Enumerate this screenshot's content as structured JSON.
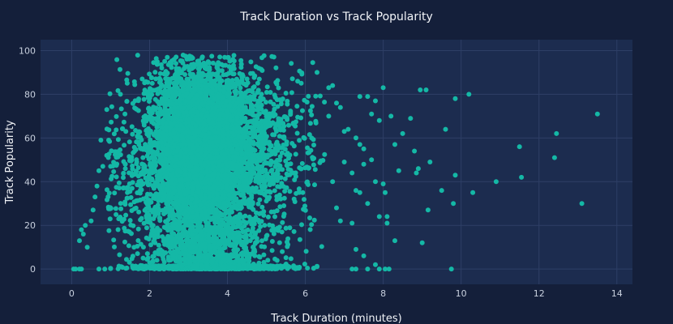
{
  "chart_data": {
    "type": "scatter",
    "title": "Track Duration vs Track Popularity",
    "xlabel": "Track Duration (minutes)",
    "ylabel": "Track Popularity",
    "xlim": [
      -0.8,
      14.4
    ],
    "ylim": [
      -7,
      105
    ],
    "xticks": [
      0,
      2,
      4,
      6,
      8,
      10,
      12,
      14
    ],
    "yticks": [
      0,
      20,
      40,
      60,
      80,
      100
    ],
    "grid": true,
    "legend": "none",
    "colors": {
      "background": "#141f3a",
      "plot_area": "#1c2c4f",
      "grid": "#2e3f66",
      "marker": "#14b8a6"
    },
    "marker_size": 3,
    "clusters": [
      {
        "cx": 3.3,
        "cy": 58,
        "sx": 0.55,
        "sy": 15,
        "n": 3600
      },
      {
        "cx": 3.4,
        "cy": 48,
        "sx": 0.95,
        "sy": 22,
        "n": 1700
      },
      {
        "cx": 2.9,
        "cy": 40,
        "sx": 1.1,
        "sy": 20,
        "n": 500
      },
      {
        "cx": 4.8,
        "cy": 55,
        "sx": 0.8,
        "sy": 20,
        "n": 500
      }
    ],
    "zero_band": {
      "x_min": 1.0,
      "x_max": 6.3,
      "center": 3.6,
      "spread": 0.9,
      "n": 900
    },
    "low_column": {
      "x_center": 3.6,
      "spread": 0.7,
      "y_max": 20,
      "n": 500
    },
    "outliers": [
      [
        0.05,
        0
      ],
      [
        0.1,
        0
      ],
      [
        0.2,
        0
      ],
      [
        0.25,
        0
      ],
      [
        0.7,
        0
      ],
      [
        0.85,
        0
      ],
      [
        0.2,
        13
      ],
      [
        0.25,
        18
      ],
      [
        0.3,
        16
      ],
      [
        0.35,
        20
      ],
      [
        0.4,
        10
      ],
      [
        0.5,
        22
      ],
      [
        0.55,
        27
      ],
      [
        0.6,
        33
      ],
      [
        0.65,
        38
      ],
      [
        0.7,
        45
      ],
      [
        0.75,
        59
      ],
      [
        0.8,
        47
      ],
      [
        0.9,
        52
      ],
      [
        0.95,
        59
      ],
      [
        1.0,
        47
      ],
      [
        6.3,
        90
      ],
      [
        6.6,
        83
      ],
      [
        6.7,
        84
      ],
      [
        6.8,
        76
      ],
      [
        6.6,
        70
      ],
      [
        6.9,
        74
      ],
      [
        7.0,
        63
      ],
      [
        7.1,
        64
      ],
      [
        6.7,
        40
      ],
      [
        6.8,
        28
      ],
      [
        6.9,
        22
      ],
      [
        7.0,
        49
      ],
      [
        7.2,
        44
      ],
      [
        7.3,
        60
      ],
      [
        7.4,
        57
      ],
      [
        7.5,
        55
      ],
      [
        7.3,
        36
      ],
      [
        7.2,
        21
      ],
      [
        7.3,
        9
      ],
      [
        7.5,
        6
      ],
      [
        7.4,
        79
      ],
      [
        7.6,
        79
      ],
      [
        7.8,
        77
      ],
      [
        7.7,
        71
      ],
      [
        7.9,
        68
      ],
      [
        7.5,
        48
      ],
      [
        7.6,
        30
      ],
      [
        7.4,
        35
      ],
      [
        7.7,
        50
      ],
      [
        7.8,
        40
      ],
      [
        7.9,
        24
      ],
      [
        7.2,
        0
      ],
      [
        7.3,
        0
      ],
      [
        7.6,
        0
      ],
      [
        7.8,
        2
      ],
      [
        7.9,
        0
      ],
      [
        8.0,
        83
      ],
      [
        8.0,
        39
      ],
      [
        8.05,
        35
      ],
      [
        8.1,
        24
      ],
      [
        8.1,
        21
      ],
      [
        8.05,
        0
      ],
      [
        8.15,
        0
      ],
      [
        8.2,
        70
      ],
      [
        8.3,
        13
      ],
      [
        8.3,
        57
      ],
      [
        8.4,
        45
      ],
      [
        8.5,
        62
      ],
      [
        8.7,
        69
      ],
      [
        8.8,
        54
      ],
      [
        8.9,
        46
      ],
      [
        8.85,
        44
      ],
      [
        8.95,
        82
      ],
      [
        9.1,
        82
      ],
      [
        9.15,
        27
      ],
      [
        9.0,
        12
      ],
      [
        9.2,
        49
      ],
      [
        9.5,
        36
      ],
      [
        9.6,
        64
      ],
      [
        9.85,
        78
      ],
      [
        9.85,
        43
      ],
      [
        9.8,
        30
      ],
      [
        9.75,
        0
      ],
      [
        10.2,
        80
      ],
      [
        10.3,
        35
      ],
      [
        10.9,
        40
      ],
      [
        11.5,
        56
      ],
      [
        11.55,
        42
      ],
      [
        12.4,
        51
      ],
      [
        12.45,
        62
      ],
      [
        13.1,
        30
      ],
      [
        13.5,
        71
      ]
    ]
  }
}
